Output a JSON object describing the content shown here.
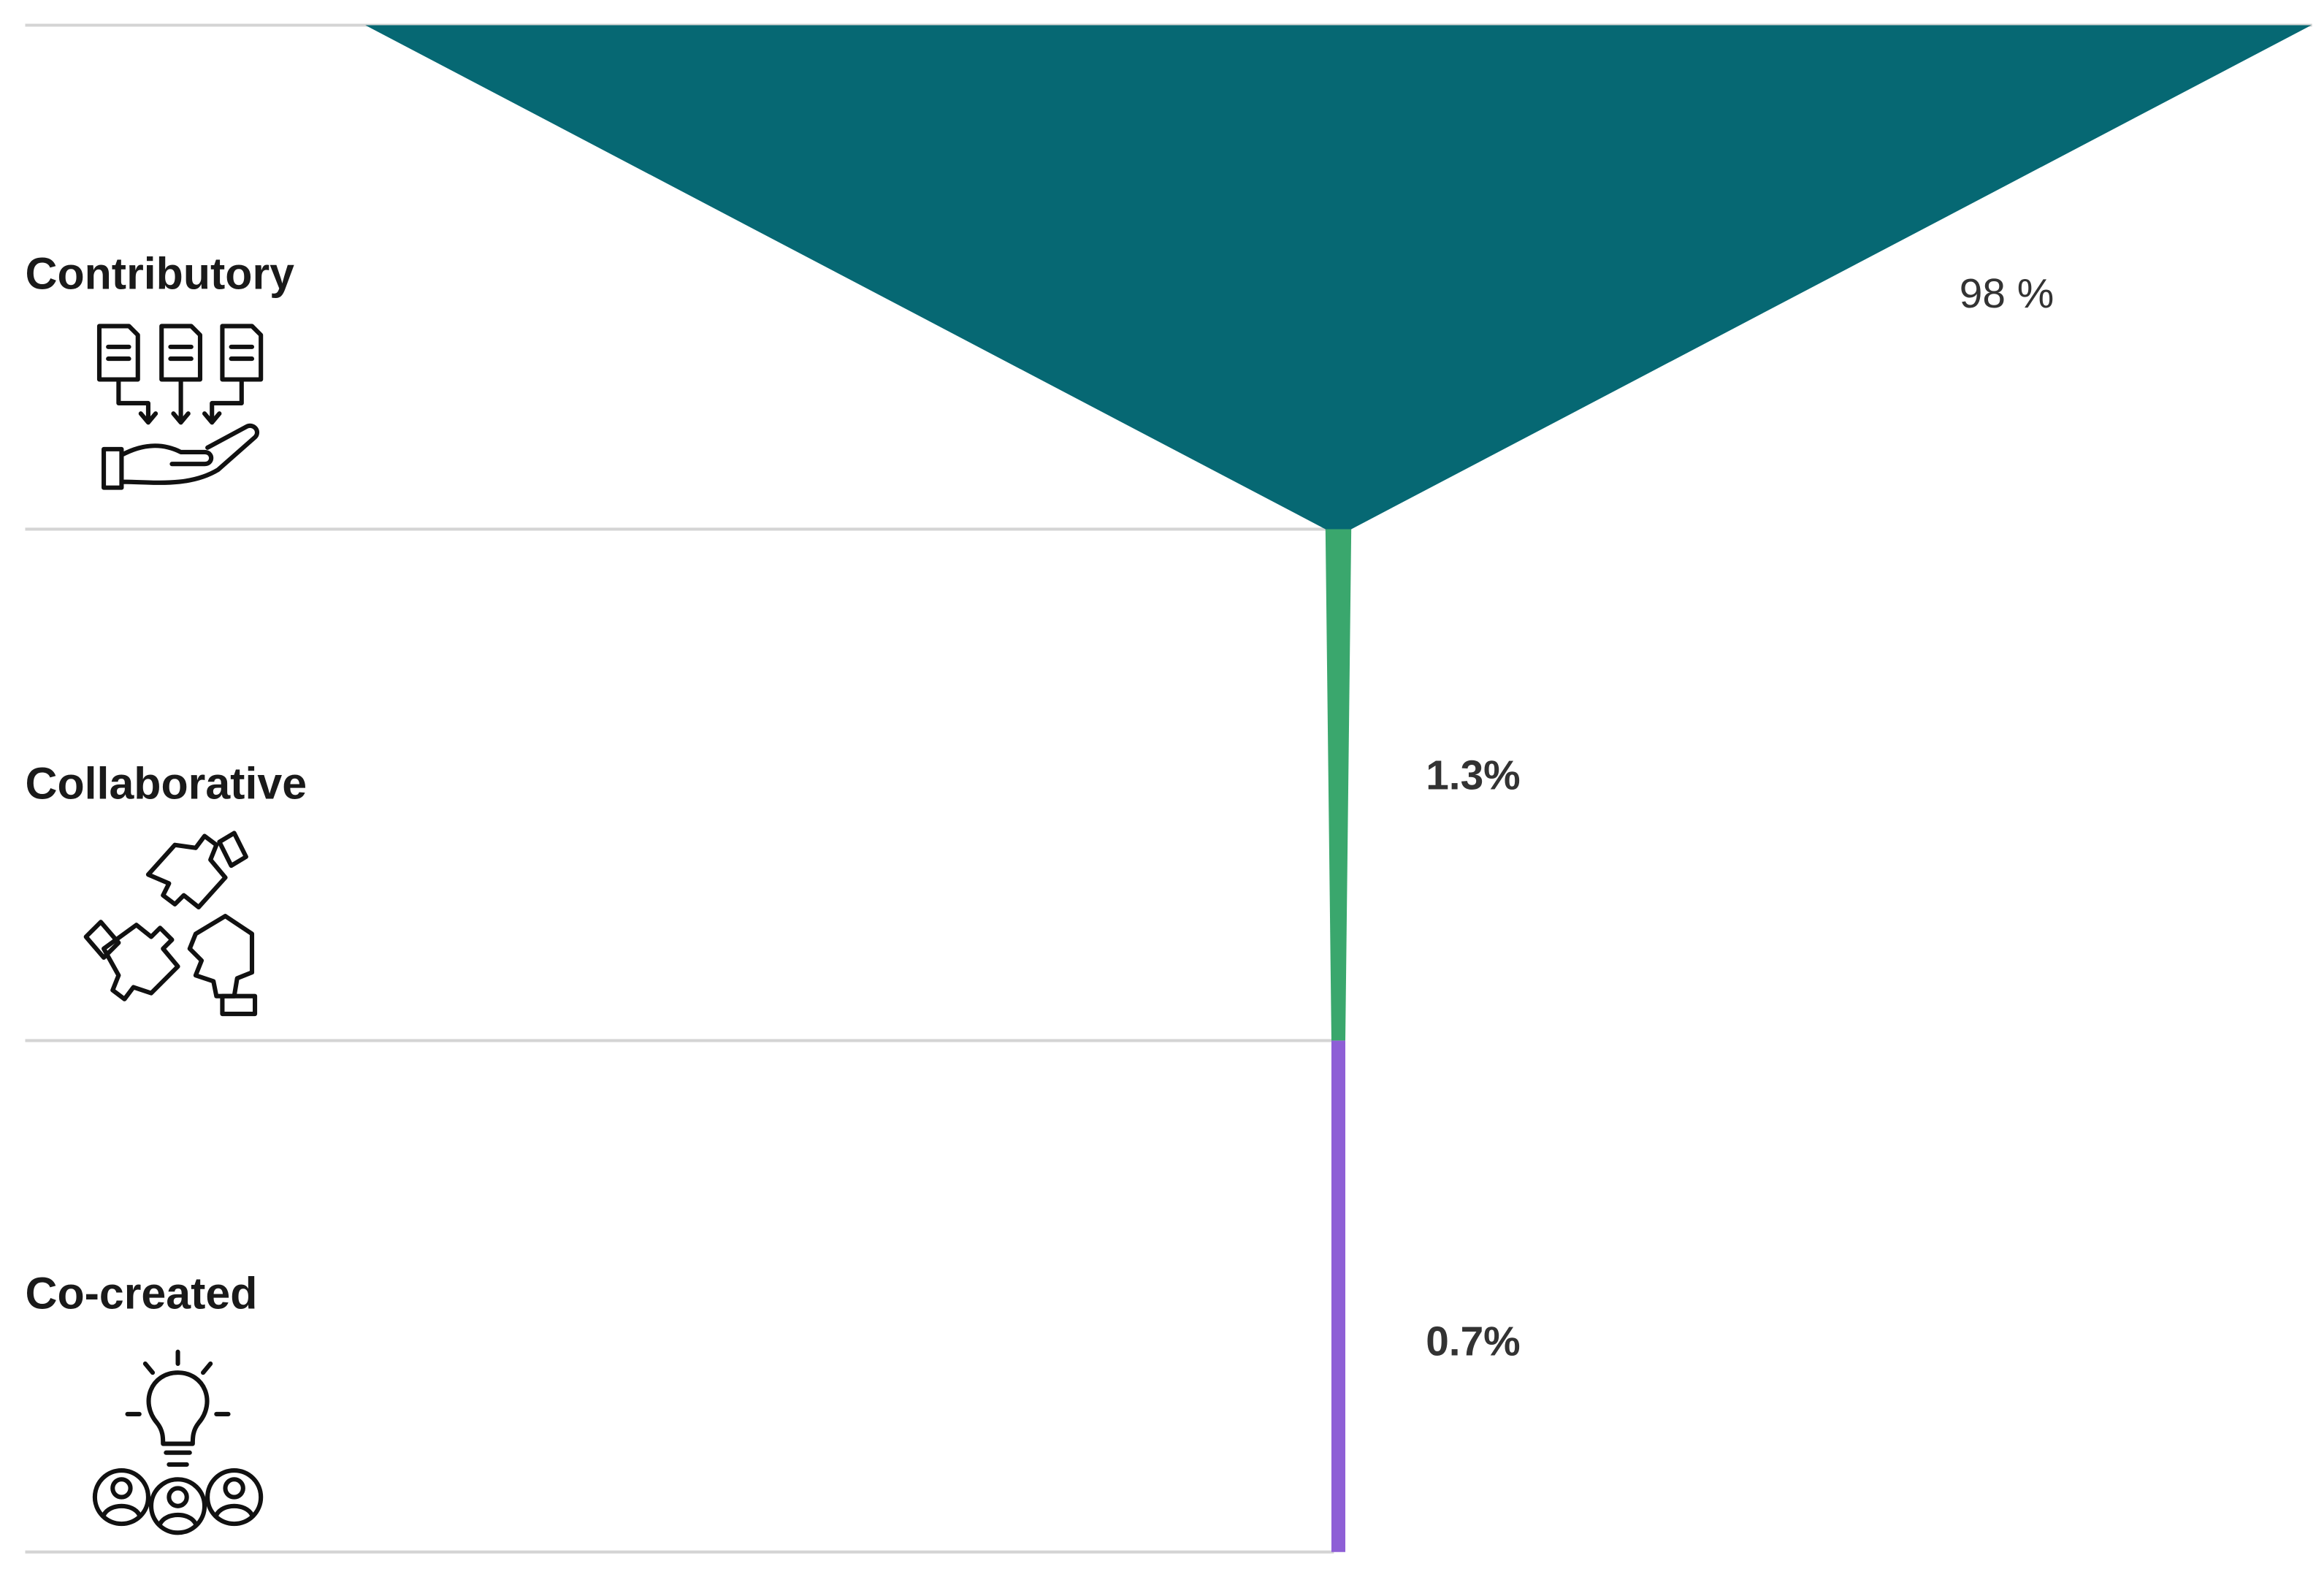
{
  "chart_data": {
    "type": "funnel",
    "categories": [
      "Contributory",
      "Collaborative",
      "Co-created"
    ],
    "values": [
      98,
      1.3,
      0.7
    ],
    "value_labels": [
      "98 %",
      "1.3%",
      "0.7%"
    ],
    "colors": [
      "#066873",
      "#3aa76d",
      "#8e5fd6"
    ]
  }
}
